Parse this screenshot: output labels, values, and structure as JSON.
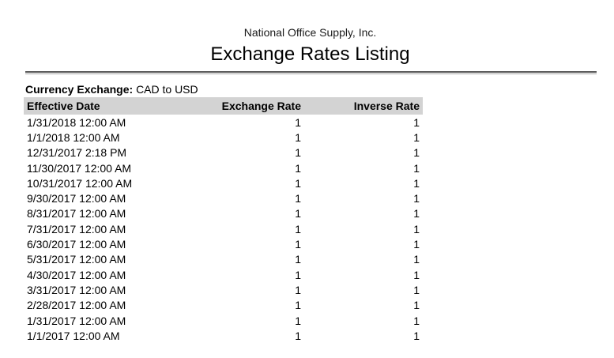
{
  "report": {
    "company": "National Office Supply, Inc.",
    "title": "Exchange Rates Listing",
    "filter": {
      "label": "Currency Exchange:",
      "value": "CAD to USD"
    },
    "table": {
      "columns": [
        "Effective Date",
        "Exchange Rate",
        "Inverse Rate"
      ],
      "rows": [
        {
          "effective_date": "1/31/2018 12:00 AM",
          "exchange_rate": "1",
          "inverse_rate": "1"
        },
        {
          "effective_date": "1/1/2018 12:00 AM",
          "exchange_rate": "1",
          "inverse_rate": "1"
        },
        {
          "effective_date": "12/31/2017 2:18 PM",
          "exchange_rate": "1",
          "inverse_rate": "1"
        },
        {
          "effective_date": "11/30/2017 12:00 AM",
          "exchange_rate": "1",
          "inverse_rate": "1"
        },
        {
          "effective_date": "10/31/2017 12:00 AM",
          "exchange_rate": "1",
          "inverse_rate": "1"
        },
        {
          "effective_date": "9/30/2017 12:00 AM",
          "exchange_rate": "1",
          "inverse_rate": "1"
        },
        {
          "effective_date": "8/31/2017 12:00 AM",
          "exchange_rate": "1",
          "inverse_rate": "1"
        },
        {
          "effective_date": "7/31/2017 12:00 AM",
          "exchange_rate": "1",
          "inverse_rate": "1"
        },
        {
          "effective_date": "6/30/2017 12:00 AM",
          "exchange_rate": "1",
          "inverse_rate": "1"
        },
        {
          "effective_date": "5/31/2017 12:00 AM",
          "exchange_rate": "1",
          "inverse_rate": "1"
        },
        {
          "effective_date": "4/30/2017 12:00 AM",
          "exchange_rate": "1",
          "inverse_rate": "1"
        },
        {
          "effective_date": "3/31/2017 12:00 AM",
          "exchange_rate": "1",
          "inverse_rate": "1"
        },
        {
          "effective_date": "2/28/2017 12:00 AM",
          "exchange_rate": "1",
          "inverse_rate": "1"
        },
        {
          "effective_date": "1/31/2017 12:00 AM",
          "exchange_rate": "1",
          "inverse_rate": "1"
        },
        {
          "effective_date": "1/1/2017 12:00 AM",
          "exchange_rate": "1",
          "inverse_rate": "1"
        }
      ]
    },
    "colors": {
      "header_bg": "#d3d3d3",
      "rule_dark": "#595959",
      "rule_light": "#a6a6a6",
      "text": "#000000"
    }
  }
}
